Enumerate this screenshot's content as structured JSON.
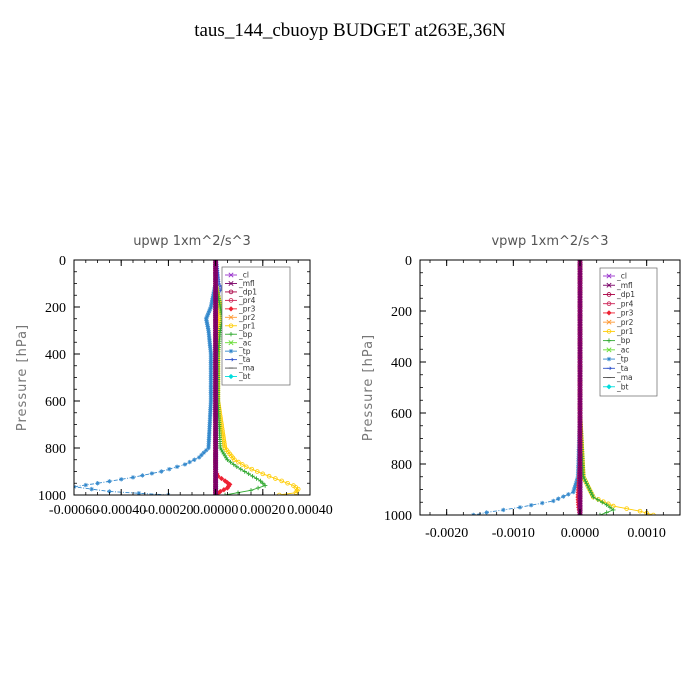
{
  "title": "taus_144_cbuoyp  BUDGET at263E,36N",
  "chart_data": [
    {
      "type": "line",
      "title": "upwp   1xm^2/s^3",
      "ylabel": "Pressure [hPa]",
      "xlim": [
        -0.0006,
        0.0004
      ],
      "ylim": [
        1000,
        0
      ],
      "xticks": [
        -0.0006,
        -0.0004,
        -0.0002,
        0.0,
        0.0002,
        0.0004
      ],
      "xtick_labels": [
        "-0.00060",
        "-0.00040",
        "-0.00020",
        "0.00000",
        "0.00020",
        "0.00040"
      ],
      "yticks": [
        0,
        200,
        400,
        600,
        800,
        1000
      ],
      "ytick_labels": [
        "0",
        "200",
        "400",
        "600",
        "800",
        "1000"
      ],
      "legend_position": "top-right",
      "series": [
        {
          "name": "_cl",
          "color": "#9933cc",
          "marker": "x",
          "x": [
            0,
            0,
            0,
            0,
            0,
            0,
            0,
            0
          ],
          "y": [
            0,
            100,
            200,
            400,
            600,
            800,
            900,
            1000
          ]
        },
        {
          "name": "_mfl",
          "color": "#7a0066",
          "marker": "x",
          "x": [
            0,
            0,
            0,
            0,
            0,
            0,
            0,
            0
          ],
          "y": [
            0,
            100,
            200,
            400,
            600,
            800,
            900,
            1000
          ]
        },
        {
          "name": "_dp1",
          "color": "#aa0044",
          "marker": "o",
          "x": [
            0,
            0,
            0,
            0,
            0,
            0,
            0,
            0
          ],
          "y": [
            0,
            100,
            200,
            400,
            600,
            800,
            900,
            1000
          ]
        },
        {
          "name": "_pr4",
          "color": "#cc2255",
          "marker": "o",
          "x": [
            0,
            0,
            0,
            0,
            0,
            0,
            0,
            0
          ],
          "y": [
            0,
            100,
            200,
            400,
            600,
            800,
            900,
            1000
          ]
        },
        {
          "name": "_pr3",
          "color": "#ee2233",
          "marker": "diamond",
          "x": [
            0,
            0,
            0,
            0,
            0,
            0,
            0,
            0,
            0,
            0,
            1e-05,
            4e-05,
            6e-05,
            5e-05,
            2e-05,
            0
          ],
          "y": [
            0,
            100,
            200,
            400,
            600,
            700,
            800,
            850,
            880,
            900,
            920,
            940,
            955,
            970,
            985,
            1000
          ]
        },
        {
          "name": "_pr2",
          "color": "#ff9933",
          "marker": "x",
          "x": [
            0,
            0,
            0,
            0,
            0,
            0,
            0,
            0,
            0,
            0,
            0,
            0,
            0,
            0,
            0,
            0
          ],
          "y": [
            0,
            100,
            200,
            400,
            600,
            700,
            800,
            850,
            880,
            900,
            920,
            940,
            955,
            970,
            985,
            1000
          ]
        },
        {
          "name": "_pr1",
          "color": "#ffcc00",
          "marker": "o",
          "x": [
            0,
            0,
            2e-05,
            2e-05,
            1e-05,
            1e-05,
            1e-05,
            4e-05,
            8e-05,
            0.00013,
            0.0002,
            0.00028,
            0.00033,
            0.00035,
            0.00034,
            0.00027
          ],
          "y": [
            0,
            100,
            200,
            250,
            300,
            400,
            600,
            800,
            850,
            880,
            910,
            940,
            960,
            975,
            990,
            1000
          ]
        },
        {
          "name": "_bp",
          "color": "#33aa33",
          "marker": "+",
          "x": [
            0,
            0,
            2e-05,
            3e-05,
            2e-05,
            1e-05,
            1e-05,
            2e-05,
            5e-05,
            9e-05,
            0.00014,
            0.00019,
            0.00021,
            0.00015,
            4e-05
          ],
          "y": [
            0,
            100,
            200,
            250,
            300,
            400,
            600,
            800,
            850,
            880,
            910,
            940,
            960,
            980,
            1000
          ]
        },
        {
          "name": "_ac",
          "color": "#66dd33",
          "marker": "x",
          "x": [
            0,
            0,
            0,
            0,
            0,
            0,
            0,
            0
          ],
          "y": [
            0,
            100,
            200,
            400,
            600,
            800,
            900,
            1000
          ]
        },
        {
          "name": "_tp",
          "color": "#3388cc",
          "marker": "*",
          "x": [
            0,
            0,
            -2e-05,
            -4e-05,
            -3e-05,
            -2e-05,
            -2e-05,
            -3e-05,
            -7e-05,
            -0.00013,
            -0.00023,
            -0.00035,
            -0.0005,
            -0.0006,
            -0.00045,
            -0.0002
          ],
          "y": [
            0,
            100,
            200,
            250,
            300,
            400,
            600,
            800,
            840,
            870,
            900,
            925,
            950,
            965,
            985,
            1000
          ]
        },
        {
          "name": "_ta",
          "color": "#3355cc",
          "marker": "arrow",
          "x": [
            0,
            1e-05,
            2e-05,
            1e-05,
            1e-05,
            0,
            0,
            0,
            0,
            0
          ],
          "y": [
            0,
            100,
            120,
            140,
            160,
            200,
            400,
            600,
            800,
            1000
          ]
        },
        {
          "name": "_ma",
          "color": "#555555",
          "marker": "dash",
          "x": [
            0,
            0,
            0,
            0,
            0,
            0,
            0,
            0
          ],
          "y": [
            0,
            100,
            200,
            400,
            600,
            800,
            900,
            1000
          ]
        },
        {
          "name": "_bt",
          "color": "#00dddd",
          "marker": "diamond",
          "x": [
            0,
            0,
            0,
            0,
            0,
            0,
            0,
            0
          ],
          "y": [
            0,
            100,
            200,
            400,
            600,
            800,
            900,
            1000
          ]
        }
      ]
    },
    {
      "type": "line",
      "title": "vpwp   1xm^2/s^3",
      "ylabel": "Pressure [hPa]",
      "xlim": [
        -0.0024,
        0.0015
      ],
      "ylim": [
        1000,
        0
      ],
      "xticks": [
        -0.002,
        -0.001,
        0.0,
        0.001
      ],
      "xtick_labels": [
        "-0.0020",
        "-0.0010",
        "0.0000",
        "0.0010"
      ],
      "yticks": [
        0,
        200,
        400,
        600,
        800,
        1000
      ],
      "ytick_labels": [
        "0",
        "200",
        "400",
        "600",
        "800",
        "1000"
      ],
      "legend_position": "top-right",
      "series": [
        {
          "name": "_cl",
          "color": "#9933cc",
          "marker": "x",
          "x": [
            0,
            0,
            0,
            0,
            0,
            0,
            0,
            0
          ],
          "y": [
            0,
            100,
            200,
            400,
            600,
            800,
            900,
            1000
          ]
        },
        {
          "name": "_mfl",
          "color": "#7a0066",
          "marker": "x",
          "x": [
            0,
            0,
            0,
            0,
            0,
            0,
            0,
            0
          ],
          "y": [
            0,
            100,
            200,
            400,
            600,
            800,
            900,
            1000
          ]
        },
        {
          "name": "_dp1",
          "color": "#aa0044",
          "marker": "o",
          "x": [
            0,
            0,
            0,
            0,
            0,
            0,
            0,
            0
          ],
          "y": [
            0,
            100,
            200,
            400,
            600,
            800,
            900,
            1000
          ]
        },
        {
          "name": "_pr4",
          "color": "#cc2255",
          "marker": "o",
          "x": [
            0,
            0,
            0,
            0,
            0,
            0,
            0,
            0
          ],
          "y": [
            0,
            100,
            200,
            400,
            600,
            800,
            900,
            1000
          ]
        },
        {
          "name": "_pr3",
          "color": "#ee2233",
          "marker": "diamond",
          "x": [
            0,
            0,
            0,
            0,
            0,
            0,
            -3e-05,
            -2e-05,
            0
          ],
          "y": [
            0,
            100,
            200,
            400,
            600,
            800,
            930,
            970,
            1000
          ]
        },
        {
          "name": "_pr2",
          "color": "#ff9933",
          "marker": "x",
          "x": [
            0,
            0,
            0,
            0,
            0,
            0,
            0,
            0
          ],
          "y": [
            0,
            100,
            200,
            400,
            600,
            800,
            900,
            1000
          ]
        },
        {
          "name": "_pr1",
          "color": "#ffcc00",
          "marker": "o",
          "x": [
            0,
            0,
            0,
            0,
            0,
            5e-05,
            0.0002,
            0.0005,
            0.0009,
            0.0011
          ],
          "y": [
            0,
            100,
            200,
            400,
            600,
            850,
            930,
            965,
            985,
            1000
          ]
        },
        {
          "name": "_bp",
          "color": "#33aa33",
          "marker": "+",
          "x": [
            0,
            0,
            0,
            0,
            0,
            5e-05,
            0.0002,
            0.0004,
            0.0005,
            0.0003
          ],
          "y": [
            0,
            100,
            200,
            400,
            600,
            850,
            930,
            960,
            980,
            1000
          ]
        },
        {
          "name": "_ac",
          "color": "#66dd33",
          "marker": "x",
          "x": [
            0,
            0,
            0,
            0,
            0,
            0,
            0,
            0
          ],
          "y": [
            0,
            100,
            200,
            400,
            600,
            800,
            900,
            1000
          ]
        },
        {
          "name": "_tp",
          "color": "#3388cc",
          "marker": "*",
          "x": [
            0,
            0,
            0,
            0,
            0,
            -3e-05,
            -0.0001,
            -0.0004,
            -0.0009,
            -0.0014,
            -0.0016
          ],
          "y": [
            0,
            100,
            200,
            400,
            600,
            850,
            910,
            945,
            970,
            990,
            1000
          ]
        },
        {
          "name": "_ta",
          "color": "#3355cc",
          "marker": "arrow",
          "x": [
            0,
            0,
            0,
            0,
            0,
            0,
            0,
            0
          ],
          "y": [
            0,
            100,
            200,
            400,
            600,
            800,
            900,
            1000
          ]
        },
        {
          "name": "_ma",
          "color": "#555555",
          "marker": "dash",
          "x": [
            0,
            0,
            0,
            0,
            0,
            0,
            0,
            0
          ],
          "y": [
            0,
            100,
            200,
            400,
            600,
            800,
            900,
            1000
          ]
        },
        {
          "name": "_bt",
          "color": "#00dddd",
          "marker": "diamond",
          "x": [
            0,
            0,
            0,
            0,
            0,
            0,
            0,
            0
          ],
          "y": [
            0,
            100,
            200,
            400,
            600,
            800,
            900,
            1000
          ]
        }
      ]
    }
  ]
}
